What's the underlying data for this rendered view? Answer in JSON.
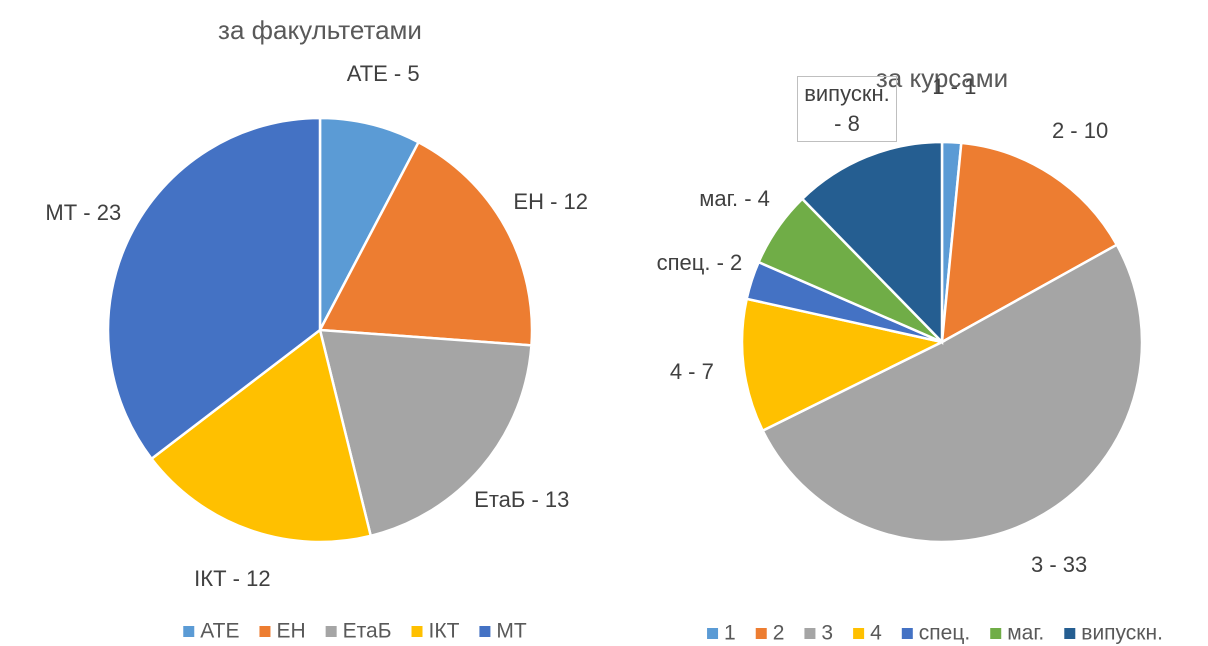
{
  "chart_data": [
    {
      "type": "pie",
      "title": "за факультетами",
      "categories": [
        "АТЕ",
        "ЕН",
        "ЕтаБ",
        "ІКТ",
        "МТ"
      ],
      "values": [
        5,
        12,
        13,
        12,
        23
      ],
      "value_labels": [
        "АТЕ - 5",
        "ЕН - 12",
        "ЕтаБ - 13",
        "ІКТ - 12",
        "МТ - 23"
      ],
      "colors": [
        "#5b9bd5",
        "#ed7d31",
        "#a5a5a5",
        "#ffc000",
        "#4472c4"
      ]
    },
    {
      "type": "pie",
      "title": "за курсами",
      "categories": [
        "1",
        "2",
        "3",
        "4",
        "спец.",
        "маг.",
        "випускн."
      ],
      "values": [
        1,
        10,
        33,
        7,
        2,
        4,
        8
      ],
      "value_labels": [
        "1 - 1",
        "2 - 10",
        "3 - 33",
        "4 - 7",
        "спец. - 2",
        "маг. - 4",
        "випускн. - 8"
      ],
      "colors": [
        "#5b9bd5",
        "#ed7d31",
        "#a5a5a5",
        "#ffc000",
        "#4472c4",
        "#70ad47",
        "#255e91"
      ]
    }
  ]
}
